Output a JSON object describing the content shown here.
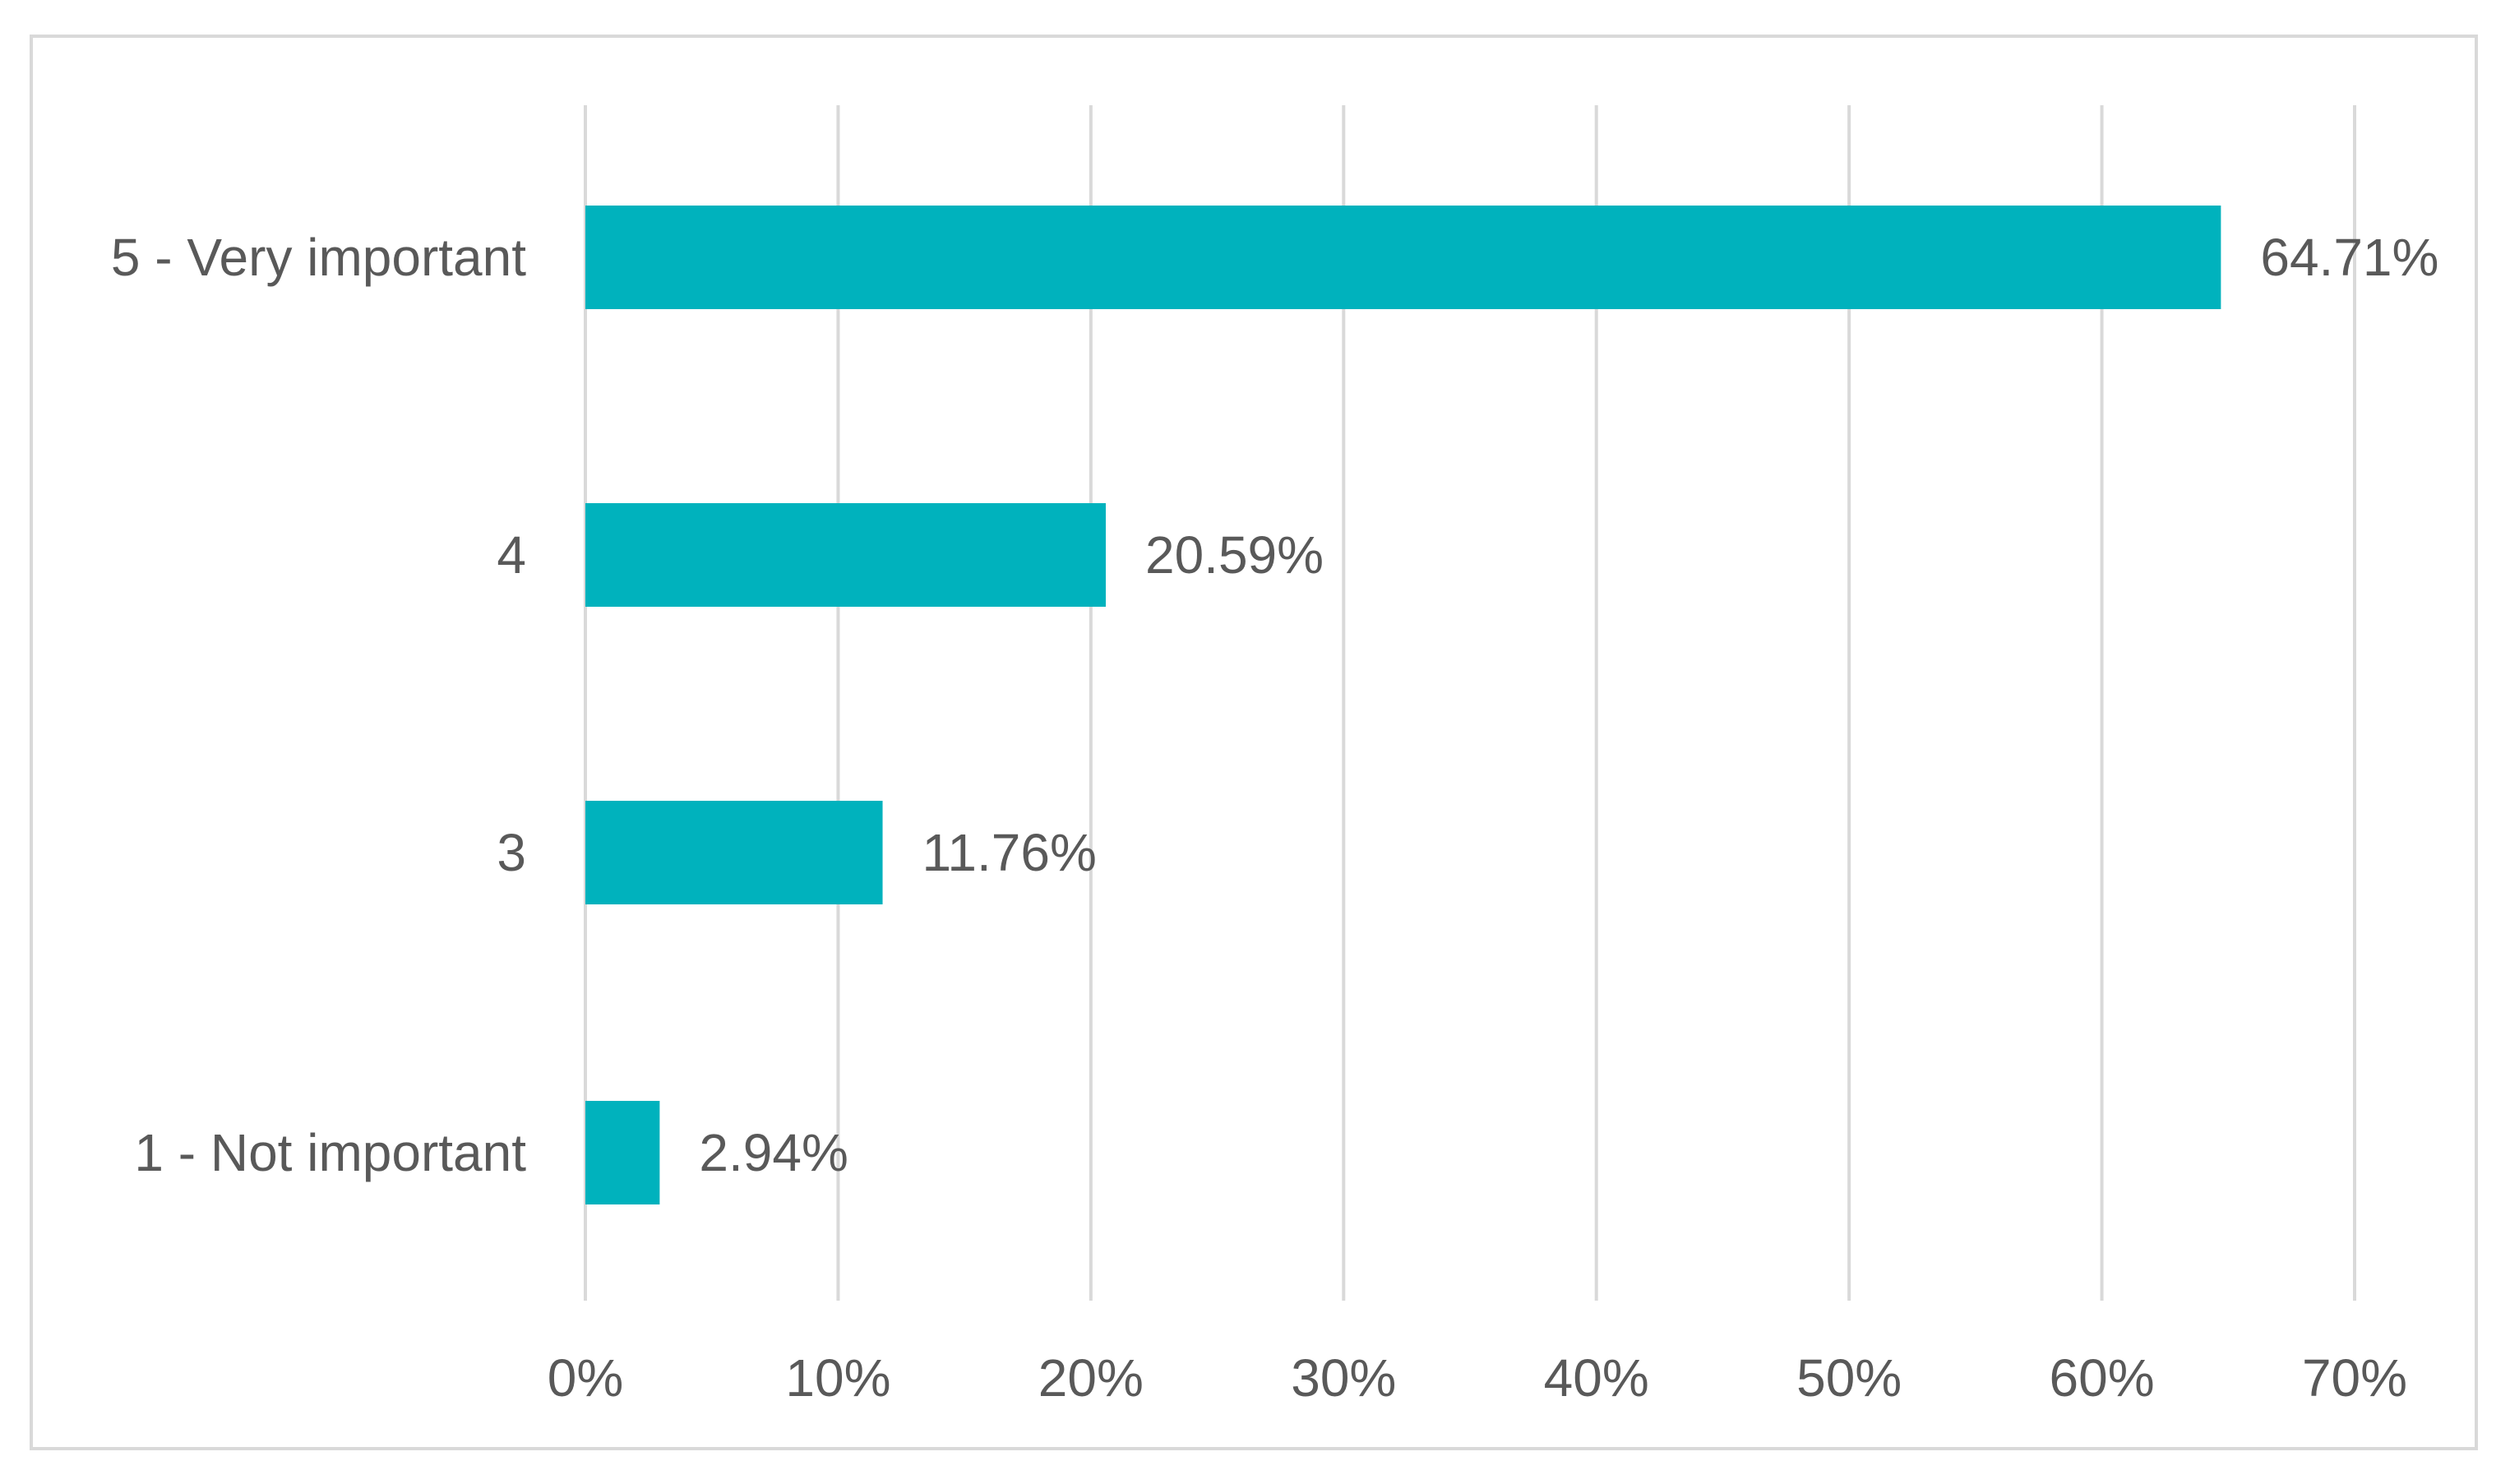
{
  "chart_data": {
    "type": "bar",
    "orientation": "horizontal",
    "title": "",
    "xlabel": "",
    "ylabel": "",
    "categories": [
      "5 - Very important",
      "4",
      "3",
      "1 - Not important"
    ],
    "values": [
      64.71,
      20.59,
      11.76,
      2.94
    ],
    "value_labels": [
      "64.71%",
      "20.59%",
      "11.76%",
      "2.94%"
    ],
    "xlim": [
      0,
      70
    ],
    "ticks": [
      0,
      10,
      20,
      30,
      40,
      50,
      60,
      70
    ],
    "tick_labels": [
      "0%",
      "10%",
      "20%",
      "30%",
      "40%",
      "50%",
      "60%",
      "70%"
    ],
    "grid": "vertical",
    "legend": "none",
    "colors": {
      "bar": "#00b2bd",
      "grid": "#d9d9d9",
      "text": "#595959",
      "border": "#d9d9d9"
    }
  }
}
